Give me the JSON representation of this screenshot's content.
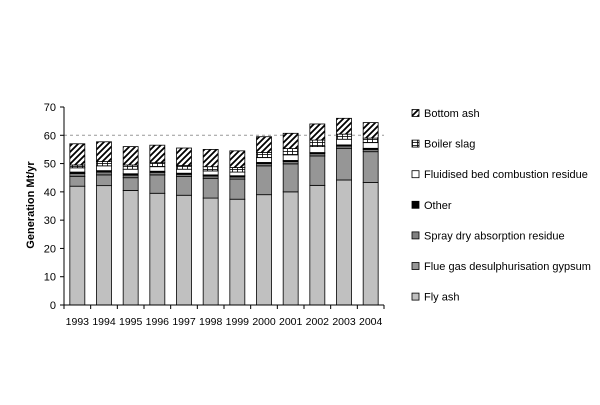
{
  "chart_data": {
    "type": "bar",
    "stacked": true,
    "title": "",
    "xlabel": "",
    "ylabel": "Generation Mt/yr",
    "ylim": [
      0,
      70
    ],
    "yticks": [
      0,
      10,
      20,
      30,
      40,
      50,
      60,
      70
    ],
    "gridlines": [
      60
    ],
    "grid": "dashed horizontal at 60",
    "legend_position": "right",
    "categories": [
      "1993",
      "1994",
      "1995",
      "1996",
      "1997",
      "1998",
      "1999",
      "2000",
      "2001",
      "2002",
      "2003",
      "2004"
    ],
    "series": [
      {
        "name": "Fly ash",
        "pattern": "solid",
        "color": "#c0c0c0",
        "values": [
          42,
          42.2,
          40.5,
          39.5,
          38.8,
          37.8,
          37.4,
          39,
          40,
          42.3,
          44.2,
          43.3
        ]
      },
      {
        "name": "Flue gas desulphurisation gypsum",
        "pattern": "solid",
        "color": "#969696",
        "values": [
          3.5,
          3.8,
          4.5,
          6.5,
          6.6,
          7.0,
          7.1,
          10.2,
          9.9,
          10.4,
          11.2,
          10.9
        ]
      },
      {
        "name": "Spray dry absorption residue",
        "pattern": "solid",
        "color": "#808080",
        "values": [
          1.0,
          1.0,
          0.9,
          0.9,
          0.8,
          0.8,
          0.8,
          0.8,
          0.8,
          0.8,
          0.8,
          0.8
        ]
      },
      {
        "name": "Other",
        "pattern": "solid",
        "color": "#000000",
        "values": [
          0.5,
          0.5,
          0.5,
          0.4,
          0.4,
          0.4,
          0.4,
          0.4,
          0.4,
          0.4,
          0.4,
          0.4
        ]
      },
      {
        "name": "Fluidised bed combustion residue",
        "pattern": "solid",
        "color": "#ffffff",
        "values": [
          1.5,
          1.7,
          1.6,
          1.6,
          1.4,
          1.4,
          1.3,
          1.7,
          2.0,
          2.1,
          2.0,
          2.0
        ]
      },
      {
        "name": "Boiler slag",
        "pattern": "grid",
        "color": "#ffffff",
        "values": [
          1.0,
          1.5,
          1.5,
          1.4,
          1.3,
          1.5,
          1.6,
          1.8,
          2.2,
          2.3,
          1.8,
          1.6
        ]
      },
      {
        "name": "Bottom ash",
        "pattern": "diagonal",
        "color": "#ffffff",
        "values": [
          7.5,
          7.0,
          6.5,
          6.2,
          6.2,
          6.1,
          5.9,
          5.6,
          5.4,
          5.7,
          5.6,
          5.5
        ]
      }
    ],
    "legend_order": [
      "Bottom ash",
      "Boiler slag",
      "Fluidised bed combustion residue",
      "Other",
      "Spray dry absorption residue",
      "Flue gas desulphurisation gypsum",
      "Fly ash"
    ]
  }
}
